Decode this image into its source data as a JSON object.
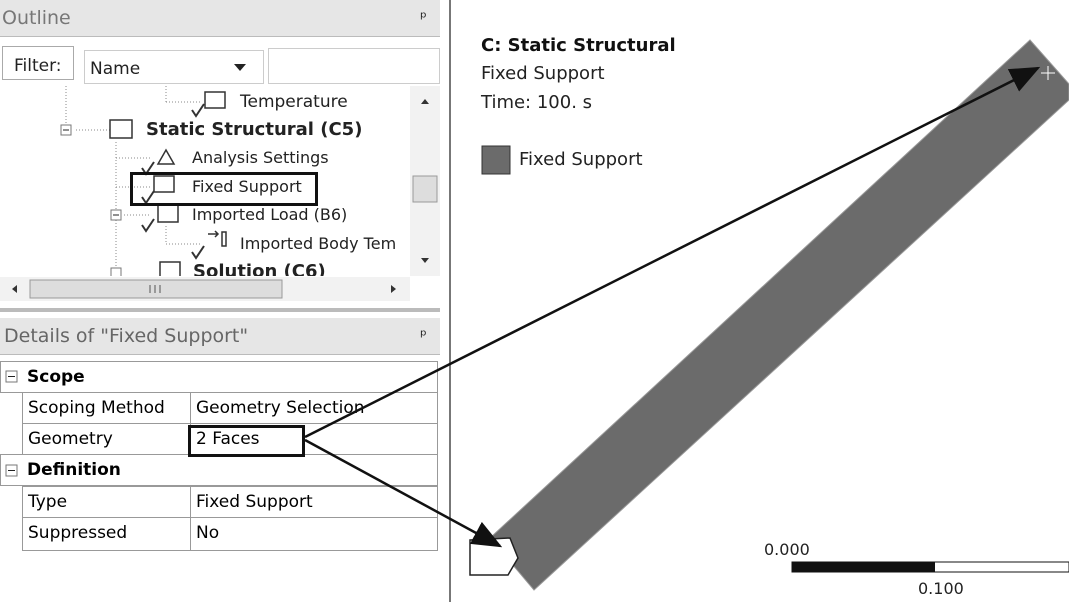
{
  "outline": {
    "title": "Outline",
    "filter_label": "Filter:",
    "filter_value": "Name",
    "tree": [
      {
        "label": "Temperature"
      },
      {
        "label": "Static Structural (C5)"
      },
      {
        "label": "Analysis Settings"
      },
      {
        "label": "Fixed Support"
      },
      {
        "label": "Imported Load (B6)"
      },
      {
        "label": "Imported Body Tem"
      },
      {
        "label": "Solution (C6)"
      }
    ]
  },
  "details": {
    "title": "Details of \"Fixed Support\"",
    "sections": [
      {
        "title": "Scope",
        "rows": [
          [
            "Scoping Method",
            "Geometry Selection"
          ],
          [
            "Geometry",
            "2 Faces"
          ]
        ]
      },
      {
        "title": "Definition",
        "rows": [
          [
            "Type",
            "Fixed Support"
          ],
          [
            "Suppressed",
            "No"
          ]
        ]
      }
    ]
  },
  "viewport": {
    "title": "C: Static Structural",
    "subtitle": "Fixed Support",
    "time": "Time: 100. s",
    "legend": "Fixed Support",
    "scale": {
      "left": "0.000",
      "right": "0.100"
    }
  }
}
